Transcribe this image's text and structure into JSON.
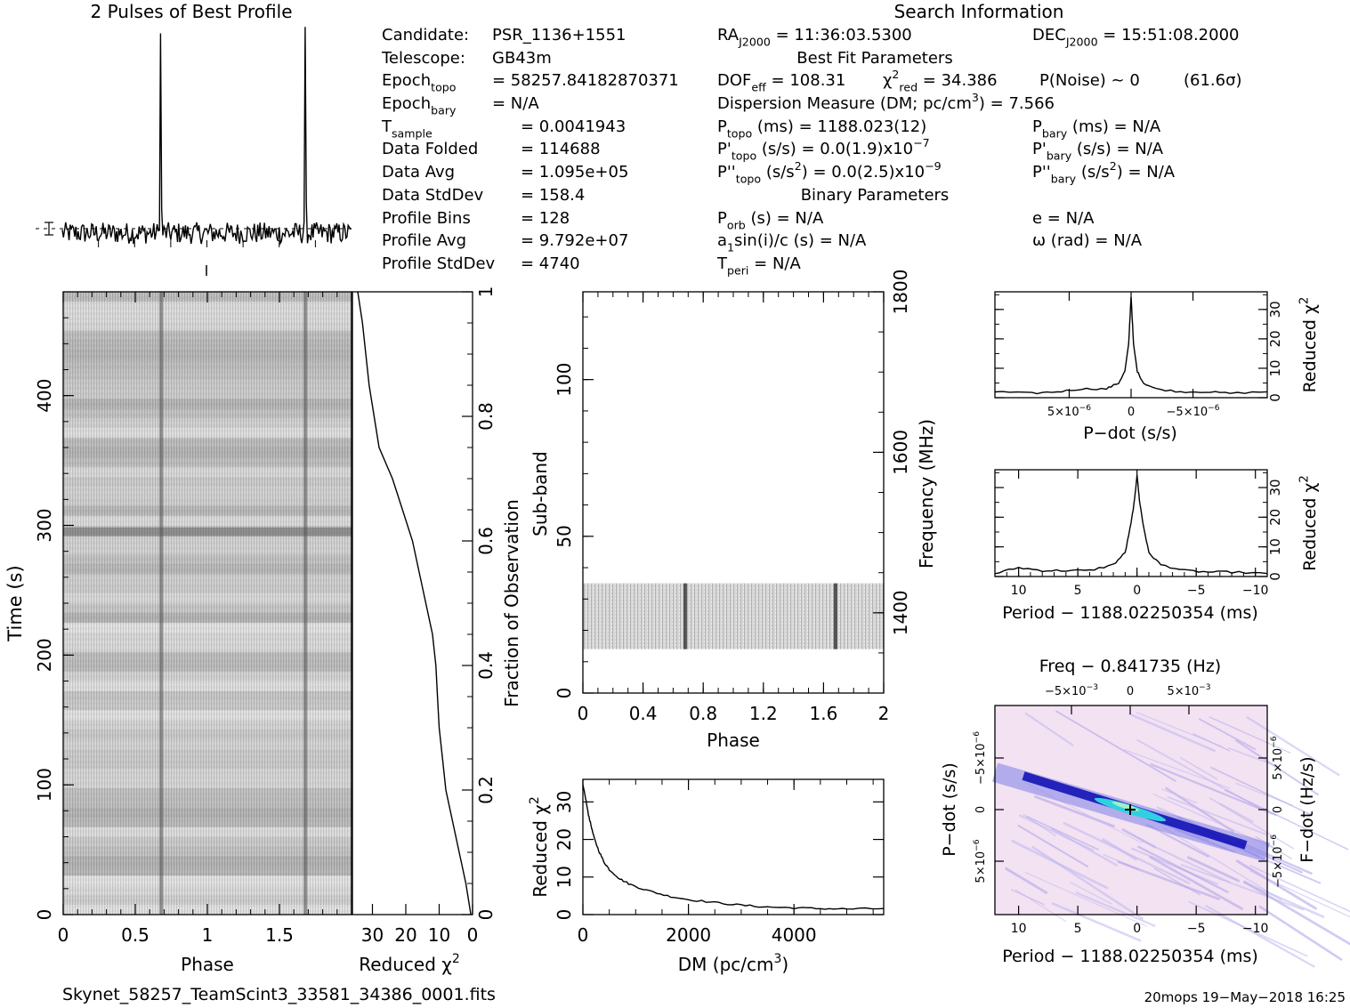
{
  "header": {
    "profile_title": "2 Pulses of Best Profile",
    "search_title": "Search Information",
    "best_fit_title": "Best Fit Parameters",
    "binary_title": "Binary Parameters"
  },
  "info_left": [
    {
      "label": "Candidate:",
      "value": "PSR_1136+1551"
    },
    {
      "label": "Telescope:",
      "value": "GB43m"
    },
    {
      "label": "Epoch",
      "sub": "topo",
      "value": "= 58257.84182870371"
    },
    {
      "label": "Epoch",
      "sub": "bary",
      "value": "= N/A"
    },
    {
      "label": "T",
      "sub": "sample",
      "value": "=   0.0041943"
    },
    {
      "label": "Data Folded",
      "value": "=   114688"
    },
    {
      "label": "Data Avg",
      "value": "=   1.095e+05"
    },
    {
      "label": "Data StdDev",
      "value": "=   158.4"
    },
    {
      "label": "Profile Bins",
      "value": "=   128"
    },
    {
      "label": "Profile Avg",
      "value": "=   9.792e+07"
    },
    {
      "label": "Profile StdDev",
      "value": "=   4740"
    }
  ],
  "info_mid": {
    "ra": {
      "label": "RA",
      "sub": "J2000",
      "value": "= 11:36:03.5300"
    },
    "dof": {
      "label": "DOF",
      "sub": "eff",
      "value": "= 108.31"
    },
    "chi": {
      "label": "χ",
      "sup": "2",
      "sub": "red",
      "value": "= 34.386"
    },
    "pnoise": "P(Noise) ~ 0",
    "sigma": "(61.6σ)",
    "dm": "Dispersion Measure (DM; pc/cm",
    "dm_sup": "3",
    "dm_value": ") = 7.566",
    "ptopo": {
      "label": "P",
      "sub": "topo",
      "value": "(ms) =  1188.023(12)"
    },
    "pdtopo": {
      "label": "P'",
      "sub": "topo",
      "value": "(s/s) = 0.0(1.9)x10",
      "exp": "−7"
    },
    "pddtopo": {
      "label": "P''",
      "sub": "topo",
      "value": "(s/s",
      "sup": "2",
      "value2": ") = 0.0(2.5)x10",
      "exp": "−9"
    },
    "porb": {
      "label": "P",
      "sub": "orb",
      "value": "(s) = N/A"
    },
    "a1": {
      "label": "a",
      "sub": "1",
      "value": "sin(i)/c (s) = N/A"
    },
    "tperi": {
      "label": "T",
      "sub": "peri",
      "value": "= N/A"
    }
  },
  "info_right": {
    "dec": {
      "label": "DEC",
      "sub": "J2000",
      "value": "= 15:51:08.2000"
    },
    "pbary": {
      "label": "P",
      "sub": "bary",
      "value": "(ms) = N/A"
    },
    "pdbary": {
      "label": "P'",
      "sub": "bary",
      "value": "(s/s) = N/A"
    },
    "pddbary": {
      "label": "P''",
      "sub": "bary",
      "value": "(s/s",
      "sup": "2",
      "value2": ") = N/A"
    },
    "ecc": "e = N/A",
    "omega": "ω (rad) = N/A"
  },
  "footer": {
    "filename": "Skynet_58257_TeamScint3_33581_34386_0001.fits",
    "stamp": "20mops 19−May−2018 16:25"
  },
  "chart_data": [
    {
      "type": "line",
      "title": "2 Pulses of Best Profile",
      "xlabel": "",
      "ylabel": "",
      "x": [
        0.0,
        0.66,
        0.67,
        0.68,
        0.69,
        1.0,
        1.66,
        1.67,
        1.68,
        1.69,
        2.0
      ],
      "y": [
        0.0,
        0.05,
        1.0,
        0.6,
        0.02,
        0.0,
        0.05,
        1.0,
        0.6,
        0.02,
        0.0
      ],
      "xlim": [
        0,
        2
      ],
      "ylim": [
        -0.1,
        1.05
      ]
    },
    {
      "type": "heatmap",
      "xlabel": "Phase",
      "ylabel": "Time (s)",
      "xlim": [
        0,
        2
      ],
      "ylim": [
        0,
        480
      ],
      "xticks": [
        "0",
        "0.5",
        "1",
        "1.5"
      ],
      "yticks": [
        "0",
        "100",
        "200",
        "300",
        "400"
      ],
      "pulse_phases": [
        0.68,
        1.68
      ]
    },
    {
      "type": "line",
      "xlabel": "Reduced χ",
      "xlabel_sup": "2",
      "ylabel": "Fraction of Observation",
      "xlim": [
        36,
        0
      ],
      "ylim": [
        0,
        1
      ],
      "xticks": [
        "30",
        "20",
        "10",
        "0"
      ],
      "yticks": [
        "0",
        "0.2",
        "0.4",
        "0.6",
        "0.8",
        "1"
      ],
      "x": [
        0.5,
        2,
        4,
        6,
        8,
        9,
        10,
        10.5,
        11,
        12,
        14,
        16,
        18,
        21,
        24,
        28,
        31,
        33,
        34.4
      ],
      "y": [
        0.0,
        0.05,
        0.1,
        0.15,
        0.2,
        0.25,
        0.3,
        0.35,
        0.4,
        0.45,
        0.5,
        0.55,
        0.6,
        0.65,
        0.7,
        0.75,
        0.85,
        0.95,
        1.0
      ]
    },
    {
      "type": "heatmap",
      "xlabel": "Phase",
      "ylabel": "Sub-band",
      "y2label": "Frequency (MHz)",
      "xlim": [
        0,
        2
      ],
      "ylim": [
        0,
        128
      ],
      "y2lim": [
        1300,
        1800
      ],
      "xticks": [
        "0",
        "0.4",
        "0.8",
        "1.2",
        "1.6",
        "2"
      ],
      "yticks": [
        "0",
        "50",
        "100"
      ],
      "y2ticks": [
        "1400",
        "1600",
        "1800"
      ],
      "band": [
        14,
        35
      ],
      "pulse_phases": [
        0.68,
        1.68
      ]
    },
    {
      "type": "line",
      "xlabel": "DM (pc/cm",
      "xlabel_sup": "3",
      "xlabel_end": ")",
      "ylabel": "Reduced χ",
      "ylabel_sup": "2",
      "xlim": [
        0,
        5700
      ],
      "ylim": [
        0,
        36
      ],
      "xticks": [
        "0",
        "2000",
        "4000"
      ],
      "yticks": [
        "0",
        "10",
        "20",
        "30"
      ],
      "x": [
        0,
        50,
        100,
        150,
        200,
        300,
        400,
        500,
        700,
        900,
        1200,
        1600,
        2000,
        2500,
        3000,
        3500,
        4000,
        4500,
        5000,
        5700
      ],
      "y": [
        34.4,
        31,
        27,
        24,
        21,
        17,
        14,
        12,
        9.5,
        8,
        6.5,
        5,
        4,
        3.2,
        2.5,
        2,
        1.8,
        1.6,
        1.5,
        1.6
      ]
    },
    {
      "type": "line",
      "xlabel": "P−dot (s/s)",
      "ylabel": "Reduced χ",
      "ylabel_sup": "2",
      "xlim": [
        1.1e-05,
        -1.1e-05
      ],
      "ylim": [
        0,
        36
      ],
      "yticks": [
        "0",
        "10",
        "20",
        "30"
      ],
      "xticks": [
        {
          "text": "5×10",
          "exp": "−6"
        },
        {
          "text": "0"
        },
        {
          "text": "−5×10",
          "exp": "−6"
        }
      ],
      "x": [
        1.1e-05,
        8e-06,
        6e-06,
        4e-06,
        2e-06,
        1e-06,
        5e-07,
        2e-07,
        0,
        -2e-07,
        -5e-07,
        -1e-06,
        -2e-06,
        -4e-06,
        -6e-06,
        -8e-06,
        -1.1e-05
      ],
      "y": [
        2,
        1.5,
        2,
        3,
        3,
        5,
        9,
        18,
        34.4,
        18,
        9,
        5,
        3,
        2,
        2,
        1.5,
        2
      ]
    },
    {
      "type": "line",
      "xlabel": "Period − 1188.02250354 (ms)",
      "ylabel": "Reduced χ",
      "ylabel_sup": "2",
      "xlim": [
        12,
        -11
      ],
      "ylim": [
        0,
        36
      ],
      "xticks": [
        "10",
        "5",
        "0",
        "−5",
        "−10"
      ],
      "yticks": [
        "0",
        "10",
        "20",
        "30"
      ],
      "x": [
        12,
        10,
        8,
        6,
        4,
        2,
        1,
        0.5,
        0.2,
        0,
        -0.2,
        -0.5,
        -1,
        -2,
        -4,
        -6,
        -8,
        -11
      ],
      "y": [
        1,
        3,
        2,
        2,
        2,
        4,
        8,
        18,
        26,
        34.4,
        26,
        18,
        8,
        4,
        2,
        1.5,
        1.5,
        1
      ]
    },
    {
      "type": "heatmap",
      "title": "Freq − 0.841735 (Hz)",
      "xlabel": "Period − 1188.02250354 (ms)",
      "ylabel": "P−dot (s/s)",
      "y2label": "F−dot (Hz/s)",
      "xlim": [
        12,
        -11
      ],
      "ylim": [
        -1e-05,
        1e-05
      ],
      "xticks": [
        "10",
        "5",
        "0",
        "−5",
        "−10"
      ],
      "x2ticks": [
        {
          "text": "−5×10",
          "exp": "−3"
        },
        {
          "text": "0"
        },
        {
          "text": "5×10",
          "exp": "−3"
        }
      ],
      "yticks": [
        {
          "text": "−5×10",
          "exp": "−6"
        },
        {
          "text": "0"
        },
        {
          "text": "5×10",
          "exp": "−6"
        }
      ],
      "y2ticks": [
        {
          "text": "5×10",
          "exp": "−6"
        },
        {
          "text": "0"
        },
        {
          "text": "−5×10",
          "exp": "−6"
        }
      ],
      "colors": {
        "low": "#f2e2f2",
        "mid": "#8080e8",
        "high": "#0000b0",
        "peak": "#30d0e0"
      },
      "best": [
        0,
        0
      ]
    }
  ]
}
